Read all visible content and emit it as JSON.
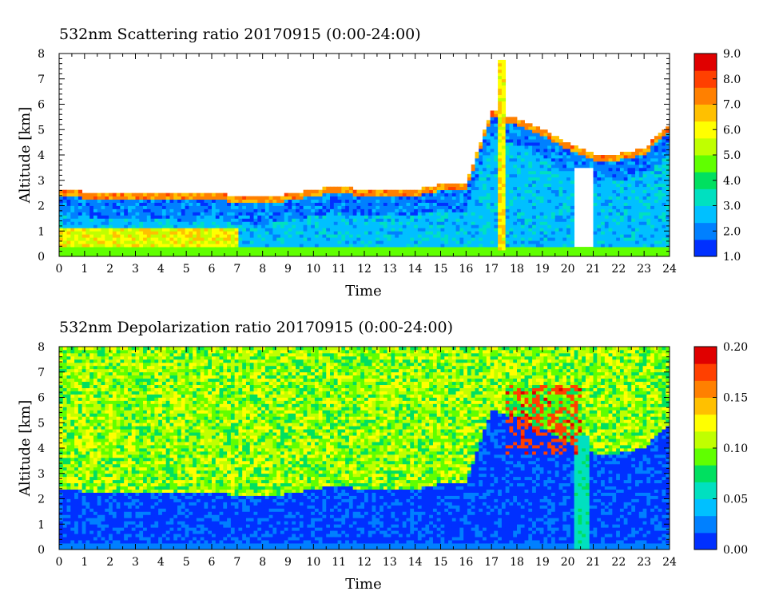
{
  "colors": {
    "scale": [
      "#0030ff",
      "#0080ff",
      "#00c0ff",
      "#00e0c0",
      "#00e060",
      "#60ff00",
      "#c0ff00",
      "#ffff00",
      "#ffc000",
      "#ff8000",
      "#ff4000",
      "#e00000"
    ],
    "nodata": "#ffffff"
  },
  "chart_data": [
    {
      "type": "heatmap",
      "title": "532nm Scattering ratio  20170915 (0:00-24:00)",
      "xlabel": "Time",
      "ylabel": "Altitude [km]",
      "xlim": [
        0,
        24
      ],
      "ylim": [
        0,
        8
      ],
      "x_ticks": [
        "0",
        "1",
        "2",
        "3",
        "4",
        "5",
        "6",
        "7",
        "8",
        "9",
        "10",
        "11",
        "12",
        "13",
        "14",
        "15",
        "16",
        "17",
        "18",
        "19",
        "20",
        "21",
        "22",
        "23",
        "24"
      ],
      "y_ticks": [
        "0",
        "1",
        "2",
        "3",
        "4",
        "5",
        "6",
        "7",
        "8"
      ],
      "colorbar": {
        "range": [
          1.0,
          9.0
        ],
        "ticks": [
          "1.0",
          "2.0",
          "3.0",
          "4.0",
          "5.0",
          "6.0",
          "7.0",
          "8.0",
          "9.0"
        ]
      },
      "cloud_base_km": [
        [
          0,
          2.4
        ],
        [
          1,
          2.3
        ],
        [
          2,
          2.3
        ],
        [
          3,
          2.3
        ],
        [
          4,
          2.3
        ],
        [
          5,
          2.2
        ],
        [
          6,
          2.3
        ],
        [
          7,
          2.1
        ],
        [
          8,
          2.1
        ],
        [
          9,
          2.2
        ],
        [
          10,
          2.4
        ],
        [
          11,
          2.5
        ],
        [
          12,
          2.4
        ],
        [
          13,
          2.4
        ],
        [
          14,
          2.4
        ],
        [
          15,
          2.6
        ],
        [
          16,
          2.6
        ],
        [
          17,
          5.5
        ],
        [
          18,
          5.2
        ],
        [
          19,
          4.8
        ],
        [
          20,
          4.2
        ],
        [
          21,
          3.8
        ],
        [
          22,
          3.8
        ],
        [
          23,
          4.0
        ],
        [
          24,
          5.0
        ]
      ]
    },
    {
      "type": "heatmap",
      "title": "532nm Depolarization ratio  20170915 (0:00-24:00)",
      "xlabel": "Time",
      "ylabel": "Altitude [km]",
      "xlim": [
        0,
        24
      ],
      "ylim": [
        0,
        8
      ],
      "x_ticks": [
        "0",
        "1",
        "2",
        "3",
        "4",
        "5",
        "6",
        "7",
        "8",
        "9",
        "10",
        "11",
        "12",
        "13",
        "14",
        "15",
        "16",
        "17",
        "18",
        "19",
        "20",
        "21",
        "22",
        "23",
        "24"
      ],
      "y_ticks": [
        "0",
        "1",
        "2",
        "3",
        "4",
        "5",
        "6",
        "7",
        "8"
      ],
      "colorbar": {
        "range": [
          0.0,
          0.2
        ],
        "ticks": [
          "0.00",
          "0.05",
          "0.10",
          "0.15",
          "0.20"
        ]
      }
    }
  ]
}
